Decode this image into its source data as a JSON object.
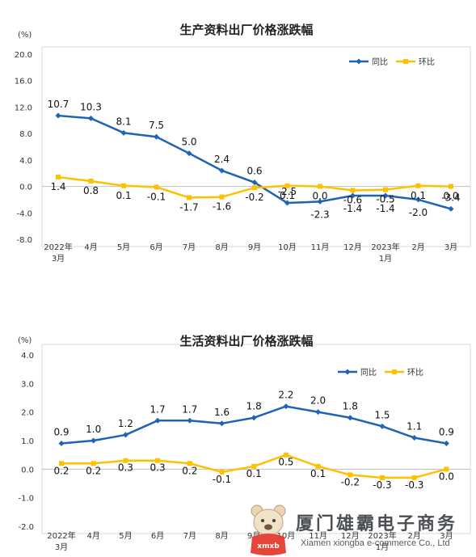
{
  "chart_data": [
    {
      "type": "line",
      "title": "生产资料出厂价格涨跌幅",
      "unit_label": "(%)",
      "ylim": [
        -8.0,
        20.0
      ],
      "y_ticks": [
        "20.0",
        "16.0",
        "12.0",
        "8.0",
        "4.0",
        "0.0",
        "-4.0",
        "-8.0"
      ],
      "y_tick_values": [
        20,
        16,
        12,
        8,
        4,
        0,
        -4,
        -8
      ],
      "categories": [
        [
          "2022年",
          "3月"
        ],
        [
          "4月"
        ],
        [
          "5月"
        ],
        [
          "6月"
        ],
        [
          "7月"
        ],
        [
          "8月"
        ],
        [
          "9月"
        ],
        [
          "10月"
        ],
        [
          "11月"
        ],
        [
          "12月"
        ],
        [
          "2023年",
          "1月"
        ],
        [
          "2月"
        ],
        [
          "3月"
        ]
      ],
      "legend_position": "top-right",
      "grid": false,
      "series": [
        {
          "name": "同比",
          "color": "#1f63b4",
          "values": [
            10.7,
            10.3,
            8.1,
            7.5,
            5.0,
            2.4,
            0.6,
            -2.5,
            -2.3,
            -1.4,
            -1.4,
            -2.0,
            -3.4
          ],
          "labels": [
            "10.7",
            "10.3",
            "8.1",
            "7.5",
            "5.0",
            "2.4",
            "0.6",
            "-2.5",
            "-2.3",
            "-1.4",
            "-1.4",
            "-2.0",
            "-3.4"
          ]
        },
        {
          "name": "环比",
          "color": "#ffc000",
          "values": [
            1.4,
            0.8,
            0.1,
            -0.1,
            -1.7,
            -1.6,
            -0.2,
            0.1,
            0.0,
            -0.6,
            -0.5,
            0.1,
            0.0
          ],
          "labels": [
            "1.4",
            "0.8",
            "0.1",
            "-0.1",
            "-1.7",
            "-1.6",
            "-0.2",
            "0.1",
            "0.0",
            "-0.6",
            "-0.5",
            "0.1",
            "0.0"
          ]
        }
      ]
    },
    {
      "type": "line",
      "title": "生活资料出厂价格涨跌幅",
      "unit_label": "(%)",
      "ylim": [
        -2.0,
        4.0
      ],
      "y_ticks": [
        "4.0",
        "3.0",
        "2.0",
        "1.0",
        "0.0",
        "-1.0",
        "-2.0"
      ],
      "y_tick_values": [
        4,
        3,
        2,
        1,
        0,
        -1,
        -2
      ],
      "categories": [
        [
          "2022年",
          "3月"
        ],
        [
          "4月"
        ],
        [
          "5月"
        ],
        [
          "6月"
        ],
        [
          "7月"
        ],
        [
          "8月"
        ],
        [
          "9月"
        ],
        [
          "10月"
        ],
        [
          "11月"
        ],
        [
          "12月"
        ],
        [
          "2023年",
          "1月"
        ],
        [
          "2月"
        ],
        [
          "3月"
        ]
      ],
      "legend_position": "top-right",
      "grid": false,
      "series": [
        {
          "name": "同比",
          "color": "#1f63b4",
          "values": [
            0.9,
            1.0,
            1.2,
            1.7,
            1.7,
            1.6,
            1.8,
            2.2,
            2.0,
            1.8,
            1.5,
            1.1,
            0.9
          ],
          "labels": [
            "0.9",
            "1.0",
            "1.2",
            "1.7",
            "1.7",
            "1.6",
            "1.8",
            "2.2",
            "2.0",
            "1.8",
            "1.5",
            "1.1",
            "0.9"
          ]
        },
        {
          "name": "环比",
          "color": "#ffc000",
          "values": [
            0.2,
            0.2,
            0.3,
            0.3,
            0.2,
            -0.1,
            0.1,
            0.5,
            0.1,
            -0.2,
            -0.3,
            -0.3,
            0.0
          ],
          "labels": [
            "0.2",
            "0.2",
            "0.3",
            "0.3",
            "0.2",
            "-0.1",
            "0.1",
            "0.5",
            "0.1",
            "-0.2",
            "-0.3",
            "-0.3",
            "0.0"
          ]
        }
      ]
    }
  ],
  "watermark": {
    "title": "厦门雄霸电子商务",
    "subtitle": "Xiamen xiongba e-commerce Co., Ltd",
    "logo_text": "xmxb"
  }
}
